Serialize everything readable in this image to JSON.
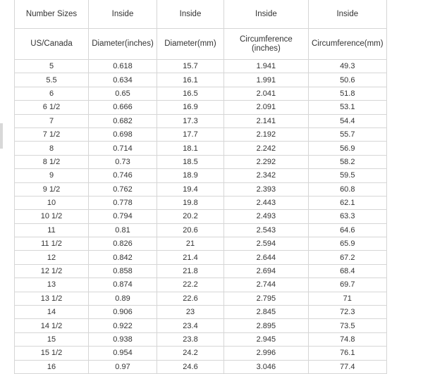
{
  "header_row1": [
    "Number Sizes",
    "Inside",
    "Inside",
    "Inside",
    "Inside"
  ],
  "header_row2": [
    "US/Canada",
    "Diameter(inches)",
    "Diameter(mm)",
    "Circumference (inches)",
    "Circumference(mm)"
  ],
  "rows": [
    [
      "5",
      "0.618",
      "15.7",
      "1.941",
      "49.3"
    ],
    [
      "5.5",
      "0.634",
      "16.1",
      "1.991",
      "50.6"
    ],
    [
      "6",
      "0.65",
      "16.5",
      "2.041",
      "51.8"
    ],
    [
      "6 1/2",
      "0.666",
      "16.9",
      "2.091",
      "53.1"
    ],
    [
      "7",
      "0.682",
      "17.3",
      "2.141",
      "54.4"
    ],
    [
      "7 1/2",
      "0.698",
      "17.7",
      "2.192",
      "55.7"
    ],
    [
      "8",
      "0.714",
      "18.1",
      "2.242",
      "56.9"
    ],
    [
      "8 1/2",
      "0.73",
      "18.5",
      "2.292",
      "58.2"
    ],
    [
      "9",
      "0.746",
      "18.9",
      "2.342",
      "59.5"
    ],
    [
      "9 1/2",
      "0.762",
      "19.4",
      "2.393",
      "60.8"
    ],
    [
      "10",
      "0.778",
      "19.8",
      "2.443",
      "62.1"
    ],
    [
      "10 1/2",
      "0.794",
      "20.2",
      "2.493",
      "63.3"
    ],
    [
      "11",
      "0.81",
      "20.6",
      "2.543",
      "64.6"
    ],
    [
      "11 1/2",
      "0.826",
      "21",
      "2.594",
      "65.9"
    ],
    [
      "12",
      "0.842",
      "21.4",
      "2.644",
      "67.2"
    ],
    [
      "12 1/2",
      "0.858",
      "21.8",
      "2.694",
      "68.4"
    ],
    [
      "13",
      "0.874",
      "22.2",
      "2.744",
      "69.7"
    ],
    [
      "13 1/2",
      "0.89",
      "22.6",
      "2.795",
      "71"
    ],
    [
      "14",
      "0.906",
      "23",
      "2.845",
      "72.3"
    ],
    [
      "14 1/2",
      "0.922",
      "23.4",
      "2.895",
      "73.5"
    ],
    [
      "15",
      "0.938",
      "23.8",
      "2.945",
      "74.8"
    ],
    [
      "15 1/2",
      "0.954",
      "24.2",
      "2.996",
      "76.1"
    ],
    [
      "16",
      "0.97",
      "24.6",
      "3.046",
      "77.4"
    ]
  ]
}
